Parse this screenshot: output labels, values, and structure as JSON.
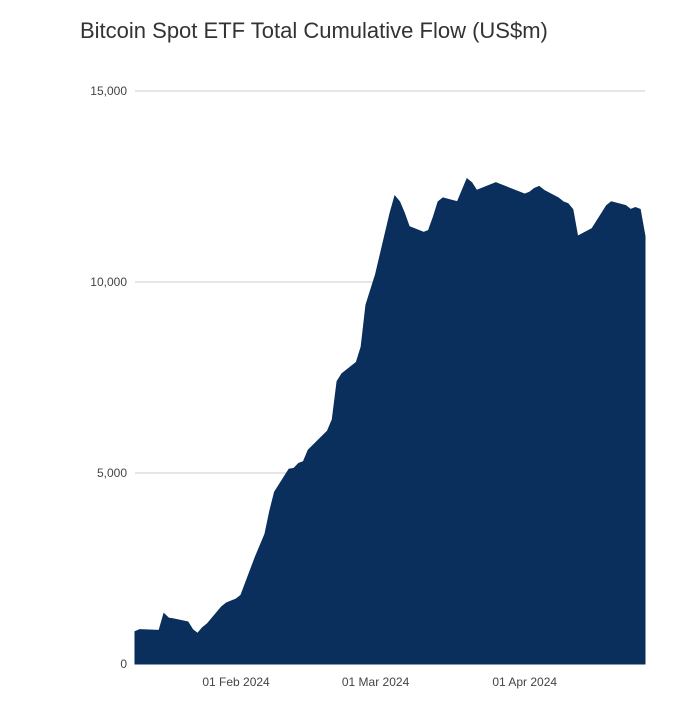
{
  "chart_data": {
    "type": "area",
    "title": "Bitcoin Spot ETF Total Cumulative Flow (US$m)",
    "xlabel": "",
    "ylabel": "",
    "ylim": [
      0,
      15000
    ],
    "y_ticks": [
      0,
      5000,
      10000,
      15000
    ],
    "y_tick_labels": [
      "0",
      "5,000",
      "10,000",
      "15,000"
    ],
    "x_tick_labels": [
      {
        "date": "2024-02-01",
        "label": "01 Feb 2024"
      },
      {
        "date": "2024-03-01",
        "label": "01 Mar 2024"
      },
      {
        "date": "2024-04-01",
        "label": "01 Apr 2024"
      }
    ],
    "xlim": [
      "2024-01-11",
      "2024-04-26"
    ],
    "grid": true,
    "legend": "none",
    "color": "#0a2f5c",
    "x": [
      "2024-01-11",
      "2024-01-12",
      "2024-01-16",
      "2024-01-17",
      "2024-01-18",
      "2024-01-19",
      "2024-01-22",
      "2024-01-23",
      "2024-01-24",
      "2024-01-25",
      "2024-01-26",
      "2024-01-29",
      "2024-01-30",
      "2024-01-31",
      "2024-02-01",
      "2024-02-02",
      "2024-02-05",
      "2024-02-06",
      "2024-02-07",
      "2024-02-08",
      "2024-02-09",
      "2024-02-12",
      "2024-02-13",
      "2024-02-14",
      "2024-02-15",
      "2024-02-16",
      "2024-02-20",
      "2024-02-21",
      "2024-02-22",
      "2024-02-23",
      "2024-02-26",
      "2024-02-27",
      "2024-02-28",
      "2024-02-29",
      "2024-03-01",
      "2024-03-04",
      "2024-03-05",
      "2024-03-06",
      "2024-03-07",
      "2024-03-08",
      "2024-03-11",
      "2024-03-12",
      "2024-03-13",
      "2024-03-14",
      "2024-03-15",
      "2024-03-18",
      "2024-03-19",
      "2024-03-20",
      "2024-03-21",
      "2024-03-22",
      "2024-03-25",
      "2024-03-26",
      "2024-03-27",
      "2024-03-28",
      "2024-04-01",
      "2024-04-02",
      "2024-04-03",
      "2024-04-04",
      "2024-04-05",
      "2024-04-08",
      "2024-04-09",
      "2024-04-10",
      "2024-04-11",
      "2024-04-12",
      "2024-04-15",
      "2024-04-16",
      "2024-04-17",
      "2024-04-18",
      "2024-04-19",
      "2024-04-22",
      "2024-04-23",
      "2024-04-24",
      "2024-04-25",
      "2024-04-26"
    ],
    "values": [
      850,
      900,
      880,
      1320,
      1200,
      1180,
      1100,
      900,
      800,
      950,
      1050,
      1500,
      1600,
      1650,
      1700,
      1800,
      2800,
      3100,
      3400,
      4000,
      4500,
      5100,
      5120,
      5250,
      5300,
      5600,
      6100,
      6400,
      7400,
      7600,
      7900,
      8300,
      9400,
      9800,
      10200,
      11800,
      12250,
      12100,
      11800,
      11450,
      11300,
      11350,
      11700,
      12100,
      12200,
      12100,
      12400,
      12700,
      12600,
      12400,
      12550,
      12600,
      12550,
      12500,
      12300,
      12350,
      12450,
      12500,
      12400,
      12200,
      12100,
      12050,
      11900,
      11200,
      11400,
      11600,
      11800,
      12000,
      12100,
      12000,
      11900,
      11950,
      11900,
      11200
    ]
  }
}
